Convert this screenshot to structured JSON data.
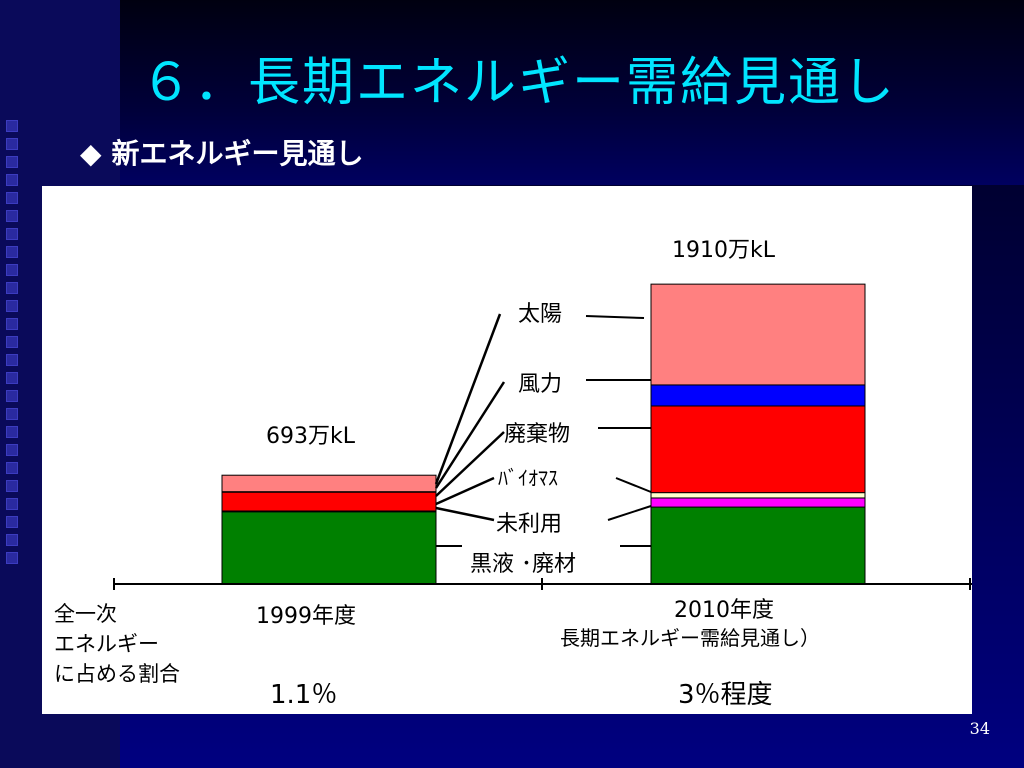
{
  "slide": {
    "title": "６．長期エネルギー需給見通し",
    "subtitle": "新エネルギー見通し",
    "diamond": "◆",
    "page_number": "34"
  },
  "chart_data": {
    "type": "bar",
    "categories": [
      "1999年度",
      "2010年度"
    ],
    "category_sublabel": [
      "",
      "長期エネルギー需給見通し）"
    ],
    "totals": [
      "693万kL",
      "1910万kL"
    ],
    "total_values": [
      693,
      1910
    ],
    "unit": "万kL",
    "stack_order": [
      "黒液・廃材",
      "未利用",
      "バイオマス",
      "廃棄物",
      "風力",
      "太陽"
    ],
    "series": [
      {
        "name": "黒液・廃材",
        "color": "#008000",
        "values": [
          460,
          490
        ]
      },
      {
        "name": "未利用",
        "color": "#ff00ff",
        "values": [
          5,
          58
        ]
      },
      {
        "name": "バイオマス",
        "color": "#ffffcc",
        "values": [
          0,
          34
        ]
      },
      {
        "name": "廃棄物",
        "color": "#ff0000",
        "values": [
          120,
          552
        ]
      },
      {
        "name": "風力",
        "color": "#0000ff",
        "values": [
          3,
          134
        ]
      },
      {
        "name": "太陽",
        "color": "#ff8080",
        "values": [
          105,
          642
        ]
      }
    ],
    "legend_labels": {
      "solar": "太陽",
      "wind": "風力",
      "waste": "廃棄物",
      "biomass": "ﾊﾞｲｵﾏｽ",
      "unused": "未利用",
      "black_liquor": "黒液 ･廃材"
    },
    "share_label": [
      "全一次",
      "エネルギー",
      "に占める割合"
    ],
    "shares": [
      "1.1％",
      "3％程度"
    ],
    "ylim": [
      0,
      2000
    ]
  }
}
